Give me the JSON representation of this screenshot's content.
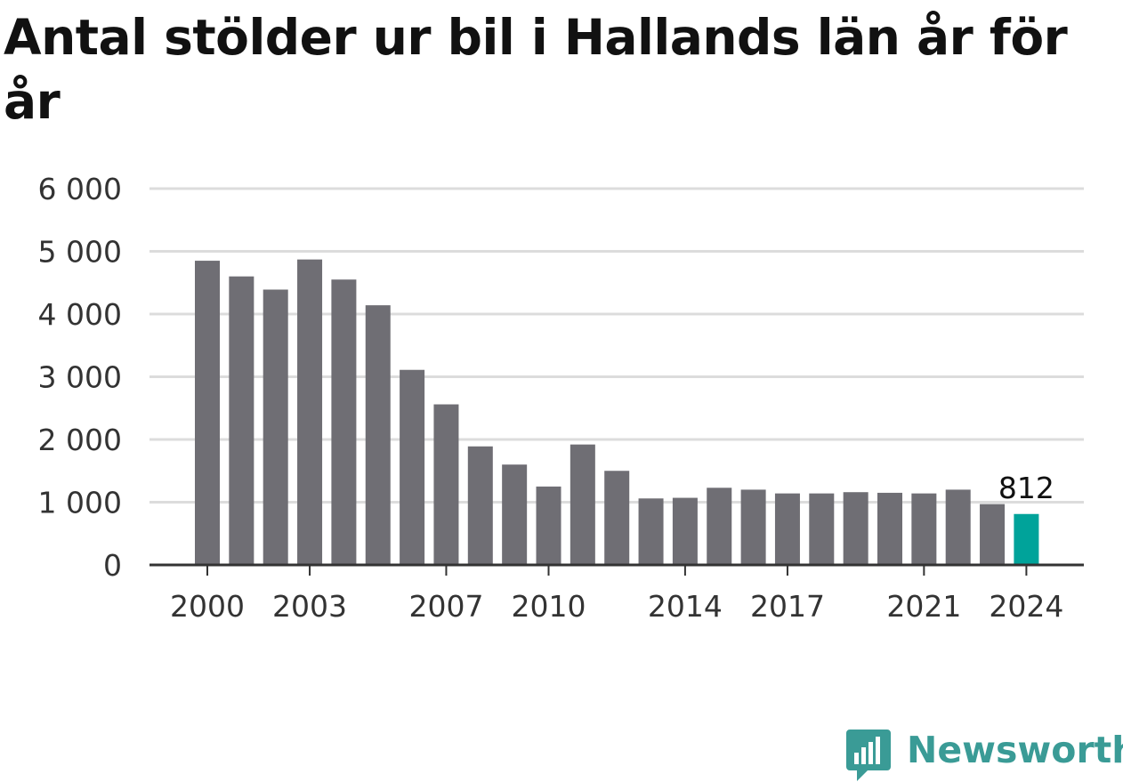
{
  "chart_data": {
    "type": "bar",
    "title": "Antal stölder ur bil i Hallands län år för år",
    "categories": [
      "2000",
      "2001",
      "2002",
      "2003",
      "2004",
      "2005",
      "2006",
      "2007",
      "2008",
      "2009",
      "2010",
      "2011",
      "2012",
      "2013",
      "2014",
      "2015",
      "2016",
      "2017",
      "2018",
      "2019",
      "2020",
      "2021",
      "2022",
      "2023",
      "2024"
    ],
    "values": [
      4850,
      4600,
      4390,
      4870,
      4550,
      4140,
      3110,
      2560,
      1890,
      1600,
      1250,
      1920,
      1500,
      1060,
      1070,
      1230,
      1200,
      1140,
      1140,
      1160,
      1150,
      1140,
      1200,
      970,
      812
    ],
    "x_tick_labels": [
      "2000",
      "2003",
      "2007",
      "2010",
      "2014",
      "2017",
      "2021",
      "2024"
    ],
    "y_ticks": [
      0,
      1000,
      2000,
      3000,
      4000,
      5000,
      6000
    ],
    "y_tick_labels": [
      "0",
      "1 000",
      "2 000",
      "3 000",
      "4 000",
      "5 000",
      "6 000"
    ],
    "ylim": [
      0,
      6000
    ],
    "highlight_index": 24,
    "highlight_label": "812",
    "colors": {
      "bar": "#6f6e74",
      "highlight": "#00a39a",
      "grid": "#dcdcdc",
      "axis": "#333333",
      "text": "#333333"
    },
    "grid": true,
    "xlabel": "",
    "ylabel": ""
  },
  "branding": {
    "name": "Newsworthy",
    "icon": "bar-chart-speech-icon"
  }
}
